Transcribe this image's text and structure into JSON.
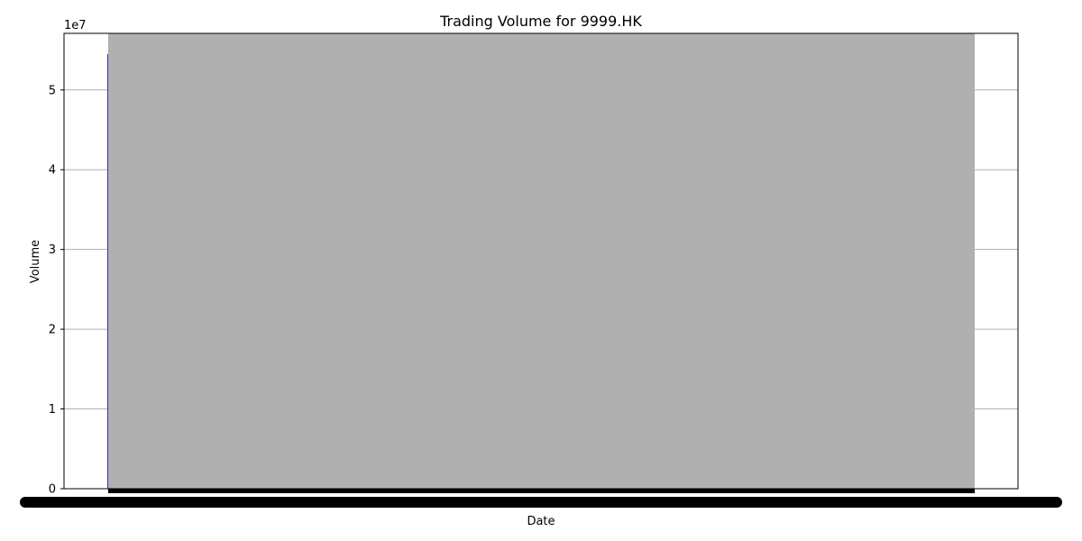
{
  "chart_data": {
    "type": "bar",
    "title": "Trading Volume for 9999.HK",
    "xlabel": "Date",
    "ylabel": "Volume",
    "offset_text": "1e7",
    "ylim": [
      0,
      57100000
    ],
    "y_ticks": [
      0,
      10000000,
      20000000,
      30000000,
      40000000,
      50000000
    ],
    "y_tick_labels": [
      "0",
      "1",
      "2",
      "3",
      "4",
      "5"
    ],
    "grid": true,
    "x_tick_labels_overlapping": true,
    "first_bar_value": 54500000,
    "bar_region_value": 57100000,
    "colors": {
      "bar_fill": "#b0b0b0",
      "first_bar_edge": "#3333aa",
      "axes": "#000000",
      "grid": "#b0b0b0",
      "ticks_band": "#000000"
    }
  }
}
